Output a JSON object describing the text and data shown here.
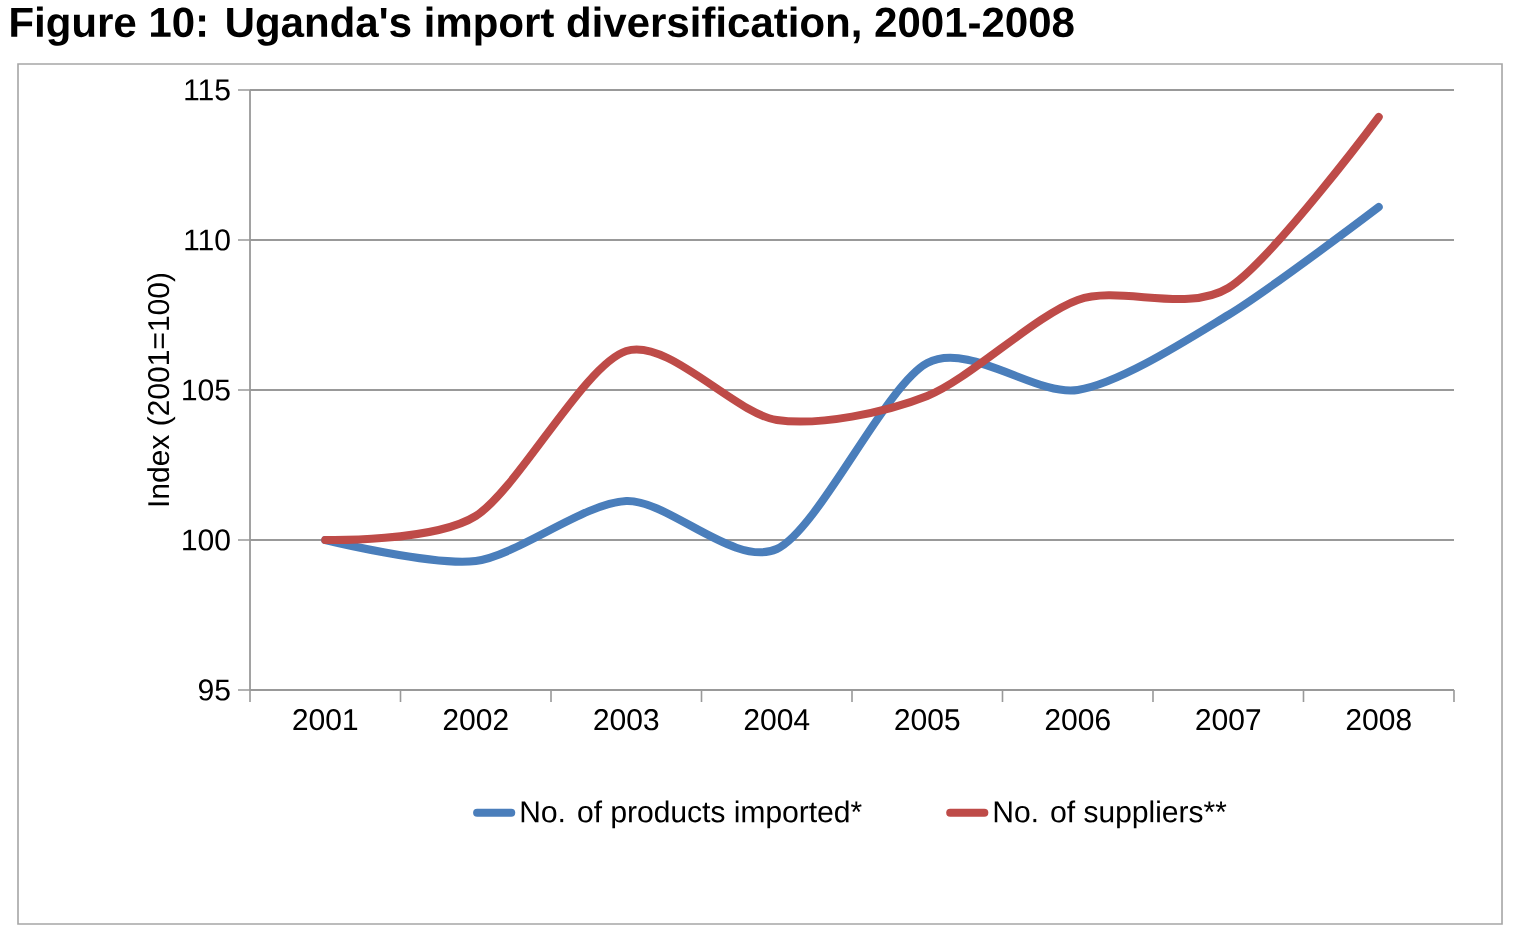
{
  "chart_data": {
    "type": "line",
    "title": "Figure 10: Uganda's import diversification, 2001-2008",
    "ylabel": "Index (2001=100)",
    "categories": [
      "2001",
      "2002",
      "2003",
      "2004",
      "2005",
      "2006",
      "2007",
      "2008"
    ],
    "series": [
      {
        "name": "No. of products imported*",
        "color": "#4a7ebb",
        "values": [
          100,
          99.3,
          101.3,
          99.7,
          105.9,
          105.0,
          107.5,
          111.1
        ]
      },
      {
        "name": "No. of suppliers**",
        "color": "#be4b48",
        "values": [
          100,
          100.8,
          106.3,
          104.0,
          104.8,
          108.0,
          108.4,
          114.1
        ]
      }
    ],
    "ylim": [
      95,
      115
    ],
    "yticks": [
      95,
      100,
      105,
      110,
      115
    ],
    "grid": "y",
    "legend": "bottom",
    "marker": "none",
    "line_style": "solid"
  }
}
